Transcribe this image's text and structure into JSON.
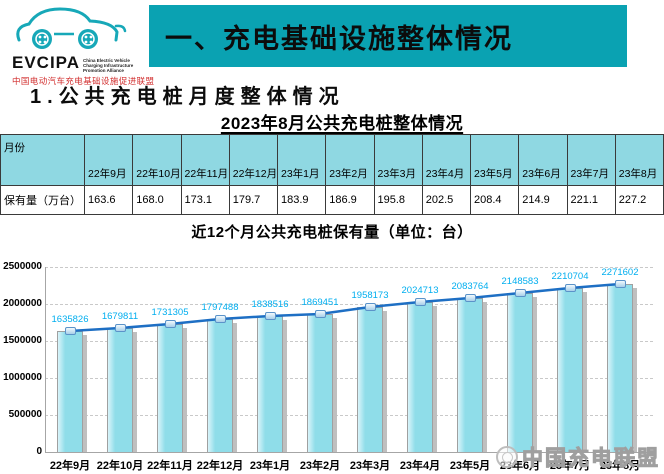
{
  "logo": {
    "acronym": "EVCIPA",
    "subtitle_en": "China Electric Vehicle Charging Infrastructure Promotion Alliance",
    "subtitle_cn": "中国电动汽车充电基础设施促进联盟",
    "accent_color": "#17a8b8",
    "subtitle_cn_color": "#d22e2e"
  },
  "header": {
    "title": "一、充电基础设施整体情况",
    "banner_color": "#0aa2b2"
  },
  "section": {
    "heading": "1.公共充电桩月度整体情况"
  },
  "table": {
    "title": "2023年8月公共充电桩整体情况",
    "header_bg": "#8fd8e2",
    "row_header": "月份",
    "row_label": "保有量（万台）",
    "columns": [
      "22年9月",
      "22年10月",
      "22年11月",
      "22年12月",
      "23年1月",
      "23年2月",
      "23年3月",
      "23年4月",
      "23年5月",
      "23年6月",
      "23年7月",
      "23年8月"
    ],
    "values": [
      "163.6",
      "168.0",
      "173.1",
      "179.7",
      "183.9",
      "186.9",
      "195.8",
      "202.5",
      "208.4",
      "214.9",
      "221.1",
      "227.2"
    ]
  },
  "chart_data": {
    "type": "bar",
    "title": "近12个月公共充电桩保有量（单位：台）",
    "categories": [
      "22年9月",
      "22年10月",
      "22年11月",
      "22年12月",
      "23年1月",
      "23年2月",
      "23年3月",
      "23年4月",
      "23年5月",
      "23年6月",
      "23年7月",
      "23年8月"
    ],
    "values": [
      1635826,
      1679811,
      1731305,
      1797488,
      1838516,
      1869451,
      1958173,
      2024713,
      2083764,
      2148583,
      2210704,
      2271602
    ],
    "ylim": [
      0,
      2500000
    ],
    "yticks": [
      "0",
      "500000",
      "1000000",
      "1500000",
      "2000000",
      "2500000"
    ],
    "grid": "dashed-horizontal",
    "legend": "none",
    "bar_color": "#8fdde9",
    "line_color": "#1e6fc4",
    "label_color": "#00aeef"
  },
  "watermark": {
    "text": "中国充电联盟"
  }
}
